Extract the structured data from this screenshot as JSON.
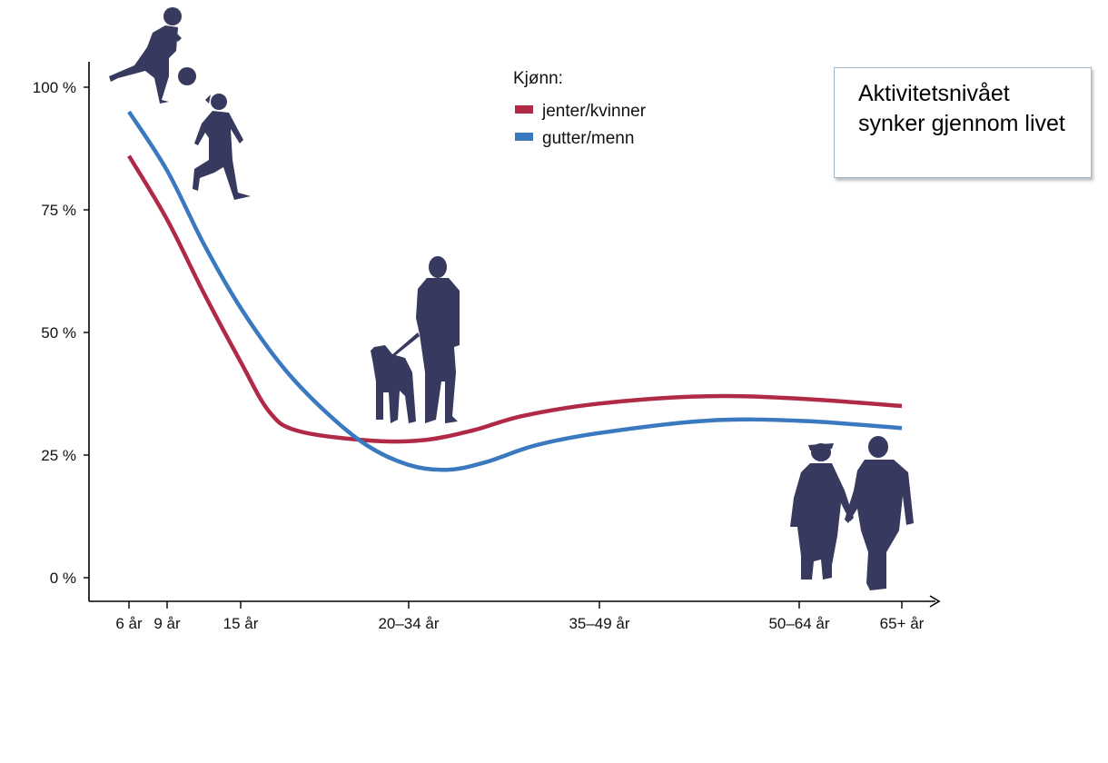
{
  "chart_data": {
    "type": "line",
    "categories": [
      "6 år",
      "9 år",
      "15 år",
      "20–34 år",
      "35–49 år",
      "50–64 år",
      "65+ år"
    ],
    "y_ticks": [
      "0 %",
      "25 %",
      "50 %",
      "75 %",
      "100 %"
    ],
    "ylim": [
      0,
      100
    ],
    "grid": false,
    "legend": {
      "title": "Kjønn:",
      "placement": "top-center",
      "entries": [
        {
          "name": "jenter/kvinner",
          "color": "#b02a45"
        },
        {
          "name": "gutter/menn",
          "color": "#3a78bf"
        }
      ]
    },
    "series": [
      {
        "name": "jenter/kvinner",
        "color": "#b02a45",
        "points": [
          [
            6,
            86
          ],
          [
            9,
            73
          ],
          [
            12,
            58
          ],
          [
            15,
            44
          ],
          [
            17,
            34
          ],
          [
            19,
            30
          ],
          [
            24,
            28
          ],
          [
            28,
            28
          ],
          [
            32,
            30
          ],
          [
            36,
            33
          ],
          [
            42,
            35.5
          ],
          [
            50,
            37
          ],
          [
            57,
            36.5
          ],
          [
            65,
            35
          ]
        ]
      },
      {
        "name": "gutter/menn",
        "color": "#3a78bf",
        "points": [
          [
            6,
            95
          ],
          [
            9,
            83
          ],
          [
            12,
            68
          ],
          [
            15,
            55
          ],
          [
            18,
            43
          ],
          [
            21,
            34
          ],
          [
            24,
            27
          ],
          [
            27,
            23
          ],
          [
            30,
            22
          ],
          [
            33,
            23.5
          ],
          [
            37,
            27
          ],
          [
            42,
            29.5
          ],
          [
            50,
            32
          ],
          [
            57,
            32
          ],
          [
            65,
            30.5
          ]
        ]
      }
    ]
  },
  "note": {
    "text": "Aktivitetsnivået synker gjennom livet"
  },
  "figures": {
    "color": "#37395e",
    "icons": [
      "child-playing-football-icon",
      "girl-running-icon",
      "person-walking-dog-icon",
      "elderly-couple-icon"
    ]
  }
}
